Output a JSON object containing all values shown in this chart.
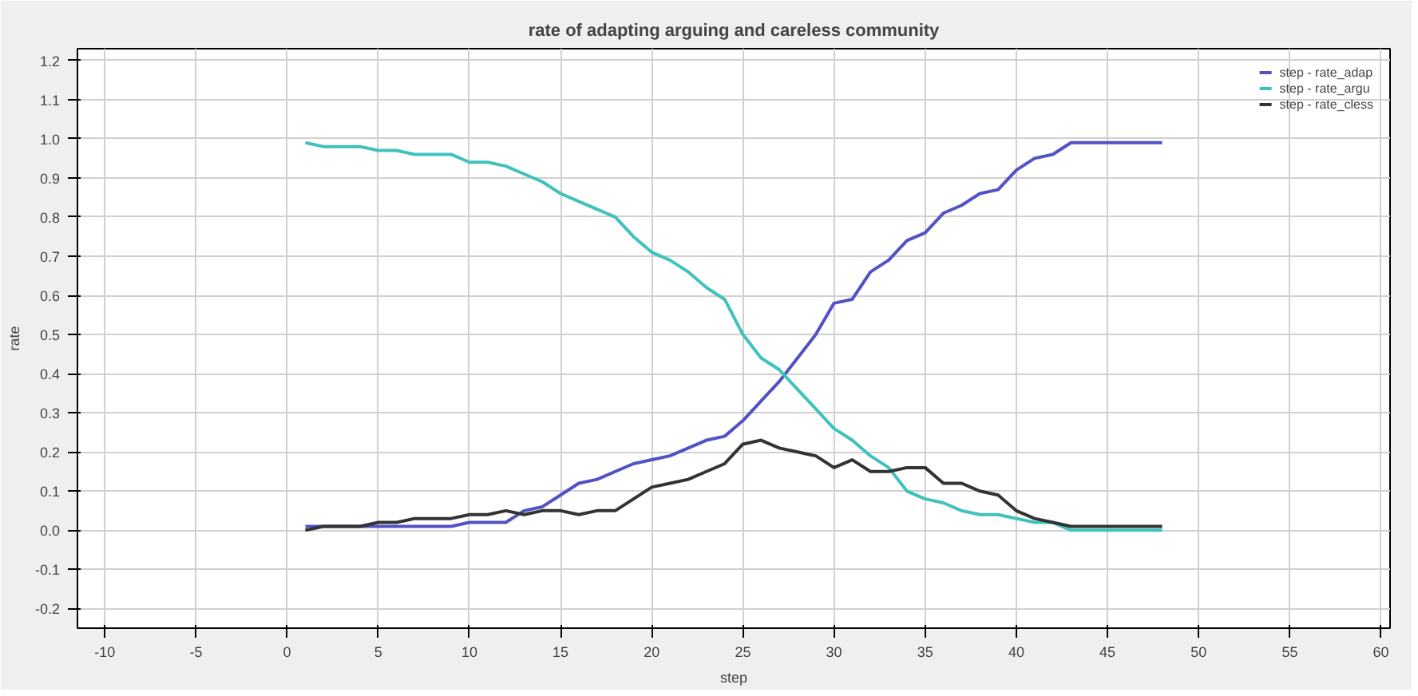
{
  "chart_data": {
    "type": "line",
    "title": "rate of adapting arguing and careless community",
    "xlabel": "step",
    "ylabel": "rate",
    "x": [
      1,
      2,
      3,
      4,
      5,
      6,
      7,
      8,
      9,
      10,
      11,
      12,
      13,
      14,
      15,
      16,
      17,
      18,
      19,
      20,
      21,
      22,
      23,
      24,
      25,
      26,
      27,
      28,
      29,
      30,
      31,
      32,
      33,
      34,
      35,
      36,
      37,
      38,
      39,
      40,
      41,
      42,
      43,
      44,
      45,
      46,
      47,
      48
    ],
    "series": [
      {
        "name": "step - rate_adap",
        "color": "#5252c4",
        "values": [
          0.01,
          0.01,
          0.01,
          0.01,
          0.01,
          0.01,
          0.01,
          0.01,
          0.01,
          0.02,
          0.02,
          0.02,
          0.05,
          0.06,
          0.09,
          0.12,
          0.13,
          0.15,
          0.17,
          0.18,
          0.19,
          0.21,
          0.23,
          0.24,
          0.28,
          0.33,
          0.38,
          0.44,
          0.5,
          0.58,
          0.59,
          0.66,
          0.69,
          0.74,
          0.76,
          0.81,
          0.83,
          0.86,
          0.87,
          0.92,
          0.95,
          0.96,
          0.99,
          0.99,
          0.99,
          0.99,
          0.99,
          0.99
        ]
      },
      {
        "name": "step - rate_argu",
        "color": "#3fc2bd",
        "values": [
          0.99,
          0.98,
          0.98,
          0.98,
          0.97,
          0.97,
          0.96,
          0.96,
          0.96,
          0.94,
          0.94,
          0.93,
          0.91,
          0.89,
          0.86,
          0.84,
          0.82,
          0.8,
          0.75,
          0.71,
          0.69,
          0.66,
          0.62,
          0.59,
          0.5,
          0.44,
          0.41,
          0.36,
          0.31,
          0.26,
          0.23,
          0.19,
          0.16,
          0.1,
          0.08,
          0.07,
          0.05,
          0.04,
          0.04,
          0.03,
          0.02,
          0.02,
          0.0,
          0.0,
          0.0,
          0.0,
          0.0,
          0.0
        ]
      },
      {
        "name": "step - rate_cless",
        "color": "#333333",
        "values": [
          0.0,
          0.01,
          0.01,
          0.01,
          0.02,
          0.02,
          0.03,
          0.03,
          0.03,
          0.04,
          0.04,
          0.05,
          0.04,
          0.05,
          0.05,
          0.04,
          0.05,
          0.05,
          0.08,
          0.11,
          0.12,
          0.13,
          0.15,
          0.17,
          0.22,
          0.23,
          0.21,
          0.2,
          0.19,
          0.16,
          0.18,
          0.15,
          0.15,
          0.16,
          0.16,
          0.12,
          0.12,
          0.1,
          0.09,
          0.05,
          0.03,
          0.02,
          0.01,
          0.01,
          0.01,
          0.01,
          0.01,
          0.01
        ]
      }
    ],
    "xlim": [
      -11.5,
      60.5
    ],
    "xticks": [
      -10,
      -5,
      0,
      5,
      10,
      15,
      20,
      25,
      30,
      35,
      40,
      45,
      50,
      55,
      60
    ],
    "ylim": [
      -0.25,
      1.23
    ],
    "yticks": [
      -0.2,
      -0.1,
      {
        "value": 0,
        "label": "0.0"
      },
      0.1,
      0.2,
      0.3,
      0.4,
      0.5,
      0.6,
      0.7,
      0.8,
      0.9,
      {
        "value": 1,
        "label": "1.0"
      },
      1.1,
      1.2
    ],
    "grid": true,
    "legend": "top right",
    "line_style": "solid",
    "marker": "none"
  }
}
